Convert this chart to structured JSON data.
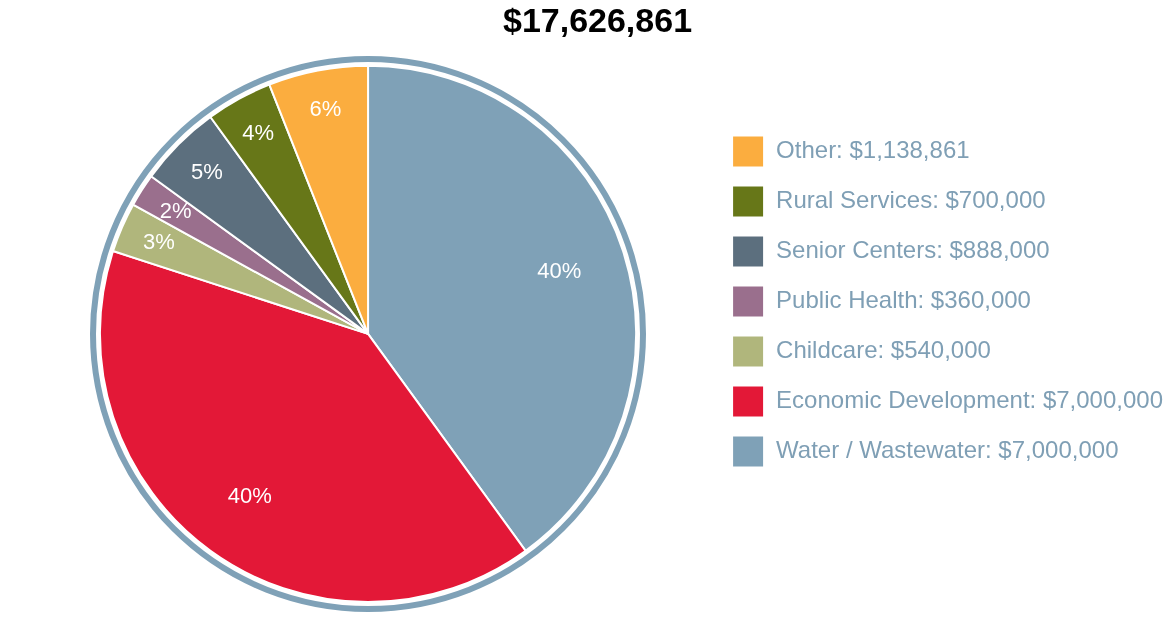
{
  "chart_data": {
    "type": "pie",
    "title": "$17,626,861",
    "categories": [
      "Water / Wastewater: $7,000,000",
      "Economic Development: $7,000,000",
      "Childcare: $540,000",
      "Public Health: $360,000",
      "Senior Centers: $888,000",
      "Rural Services: $700,000",
      "Other: $1,138,861"
    ],
    "values": [
      40,
      40,
      3,
      2,
      5,
      4,
      6
    ],
    "colors": [
      "#7fa1b7",
      "#e31837",
      "#b0b67c",
      "#9a6f8d",
      "#5c6f7e",
      "#677718",
      "#fbad3f"
    ],
    "value_labels": [
      "40%",
      "40%",
      "3%",
      "2%",
      "5%",
      "4%",
      "6%"
    ],
    "legend": "right"
  }
}
